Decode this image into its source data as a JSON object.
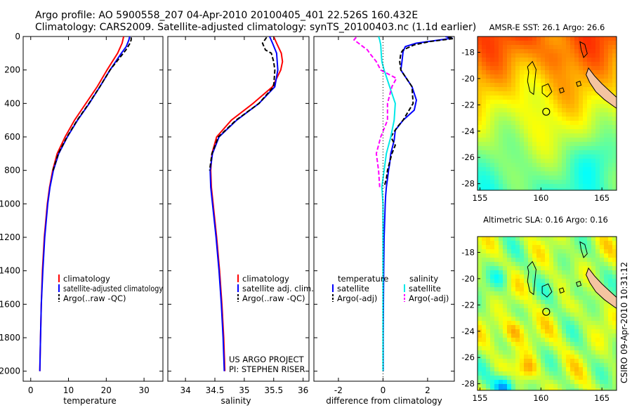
{
  "header": {
    "title_line1": "Argo profile: AO 5900558_207 04-Apr-2010 20100405_401 22.526S 160.432E",
    "title_line2": "Climatology: CARS2009. Satellite-adjusted climatology: synTS_20100403.nc (1.1d earlier)"
  },
  "colors": {
    "climatology": "#ff0000",
    "satellite": "#0000ff",
    "argo": "#000000",
    "satellite_salinity": "#00e8e8",
    "argo_salinity": "#ff00ff",
    "land": "#f4c4a0"
  },
  "chart_data": [
    {
      "id": "temperature",
      "type": "line",
      "xlabel": "temperature",
      "xlim": [
        -2,
        35
      ],
      "ylim": [
        0,
        2060
      ],
      "xticks": [
        0,
        10,
        20,
        30
      ],
      "yticks": [
        0,
        200,
        400,
        600,
        800,
        1000,
        1200,
        1400,
        1600,
        1800,
        2000
      ],
      "legend": [
        "climatology",
        "satellite-adjusted climatology",
        "Argo(..raw -QC)"
      ],
      "legend_position": "lower-right",
      "series": [
        {
          "name": "climatology",
          "color": "#ff0000",
          "dash": "",
          "depth": [
            0,
            40,
            100,
            200,
            300,
            400,
            500,
            600,
            700,
            800,
            900,
            1000,
            1200,
            1400,
            1600,
            1800,
            2000
          ],
          "values": [
            24.6,
            24.2,
            23.0,
            20.2,
            17.6,
            14.6,
            11.6,
            9.1,
            7.0,
            5.8,
            5.0,
            4.4,
            3.6,
            3.1,
            2.8,
            2.6,
            2.4
          ]
        },
        {
          "name": "satellite-adjusted climatology",
          "color": "#0000ff",
          "dash": "",
          "depth": [
            0,
            20,
            60,
            100,
            200,
            300,
            400,
            500,
            600,
            700,
            800,
            900,
            1000,
            1200,
            1400,
            1600,
            1800,
            2000
          ],
          "values": [
            26.2,
            26.0,
            25.3,
            24.0,
            21.0,
            18.3,
            15.5,
            12.4,
            9.7,
            7.4,
            6.0,
            5.1,
            4.5,
            3.7,
            3.2,
            2.8,
            2.6,
            2.4
          ]
        },
        {
          "name": "Argo(..raw -QC)",
          "color": "#000000",
          "dash": "6,3",
          "depth": [
            5,
            20,
            40,
            80,
            120,
            200,
            300,
            400,
            500,
            600,
            700,
            800
          ],
          "values": [
            26.6,
            26.6,
            26.3,
            25.2,
            23.8,
            21.0,
            18.3,
            15.4,
            12.3,
            9.6,
            7.3,
            5.9
          ]
        }
      ]
    },
    {
      "id": "salinity",
      "type": "line",
      "xlabel": "salinity",
      "xlim": [
        33.7,
        36.1
      ],
      "ylim": [
        0,
        2060
      ],
      "xticks": [
        34,
        34.5,
        35,
        35.5,
        36
      ],
      "legend": [
        "climatology",
        "satellite adj. clim.",
        "Argo(..raw -QC)"
      ],
      "legend_position": "lower-right",
      "annotation": [
        "US ARGO PROJECT",
        "PI: STEPHEN RISER"
      ],
      "series": [
        {
          "name": "climatology",
          "color": "#ff0000",
          "dash": "",
          "depth": [
            0,
            40,
            100,
            150,
            200,
            300,
            400,
            500,
            600,
            700,
            800,
            900,
            1000,
            1200,
            1400,
            1600,
            1800,
            2000
          ],
          "values": [
            35.5,
            35.55,
            35.63,
            35.65,
            35.62,
            35.48,
            35.15,
            34.78,
            34.53,
            34.45,
            34.43,
            34.44,
            34.47,
            34.53,
            34.58,
            34.62,
            34.65,
            34.67
          ]
        },
        {
          "name": "satellite adj. clim.",
          "color": "#0000ff",
          "dash": "",
          "depth": [
            0,
            40,
            100,
            200,
            300,
            400,
            500,
            600,
            700,
            800,
            900,
            1000,
            1200,
            1400,
            1600,
            1800,
            2000
          ],
          "values": [
            35.43,
            35.48,
            35.55,
            35.57,
            35.52,
            35.25,
            34.87,
            34.57,
            34.46,
            34.42,
            34.43,
            34.46,
            34.52,
            34.57,
            34.61,
            34.64,
            34.66
          ]
        },
        {
          "name": "Argo(..raw -QC)",
          "color": "#000000",
          "dash": "6,3",
          "depth": [
            5,
            40,
            80,
            100,
            150,
            200,
            300,
            400,
            500,
            600,
            700,
            800
          ],
          "values": [
            35.38,
            35.31,
            35.36,
            35.46,
            35.5,
            35.52,
            35.5,
            35.25,
            34.86,
            34.56,
            34.45,
            34.41
          ]
        }
      ]
    },
    {
      "id": "difference",
      "type": "line",
      "xlabel": "difference from climatology",
      "xlim": [
        -3.1,
        3.2
      ],
      "ylim": [
        0,
        2060
      ],
      "xticks": [
        -2,
        0,
        2
      ],
      "legend_headers": [
        "temperature",
        "salinity"
      ],
      "legend": [
        "satellite",
        "Argo(-adj)",
        "satellite",
        "Argo(-adj)"
      ],
      "legend_position": "lower-right",
      "series": [
        {
          "name": "satellite",
          "group": "temperature",
          "color": "#0000ff",
          "dash": "",
          "depth": [
            0,
            10,
            40,
            60,
            90,
            150,
            200,
            300,
            380,
            440,
            500,
            560,
            620,
            700,
            760,
            800,
            850,
            900,
            950,
            1000,
            1200,
            1400,
            1600,
            1800,
            2000
          ],
          "values": [
            2.8,
            3.1,
            1.5,
            1.0,
            0.9,
            0.85,
            0.8,
            1.3,
            1.5,
            1.4,
            0.9,
            0.55,
            0.5,
            0.35,
            0.3,
            0.25,
            0.2,
            0.15,
            0.12,
            0.1,
            0.05,
            0.03,
            0.02,
            0.01,
            0.01
          ]
        },
        {
          "name": "Argo(-adj)",
          "group": "temperature",
          "color": "#000000",
          "dash": "6,3",
          "depth": [
            5,
            10,
            30,
            50,
            80,
            100,
            150,
            200,
            300,
            400,
            500,
            540,
            600,
            650,
            700,
            750,
            800,
            850,
            900
          ],
          "values": [
            2.9,
            3.3,
            2.1,
            1.4,
            0.9,
            0.8,
            0.75,
            0.8,
            1.3,
            1.35,
            0.9,
            0.65,
            0.35,
            0.55,
            0.4,
            0.3,
            0.2,
            0.15,
            0.05
          ]
        },
        {
          "name": "satellite",
          "group": "salinity",
          "color": "#00e8e8",
          "dash": "",
          "depth": [
            0,
            20,
            50,
            100,
            150,
            200,
            300,
            400,
            500,
            600,
            700,
            800,
            900,
            1000,
            1200,
            1400,
            1600,
            1800,
            2000
          ],
          "values": [
            -0.2,
            -0.15,
            -0.1,
            -0.08,
            -0.05,
            0.05,
            0.3,
            0.55,
            0.5,
            0.35,
            0.15,
            0.05,
            -0.05,
            0.0,
            0.0,
            0.0,
            0.0,
            0.0,
            0.0
          ]
        },
        {
          "name": "Argo(-adj)",
          "group": "salinity",
          "color": "#ff00ff",
          "dash": "6,3",
          "depth": [
            5,
            20,
            40,
            60,
            80,
            100,
            150,
            200,
            250,
            300,
            400,
            500,
            600,
            700,
            800,
            900
          ],
          "values": [
            -1.2,
            -1.3,
            -1.1,
            -0.9,
            -0.7,
            -0.6,
            -0.3,
            -0.1,
            0.6,
            0.4,
            0.2,
            0.2,
            -0.1,
            -0.3,
            -0.2,
            -0.15
          ]
        }
      ]
    },
    {
      "id": "sst_map",
      "type": "heatmap",
      "title": "AMSR-E SST: 26.1 Argo: 26.6",
      "xlim": [
        154.8,
        166.2
      ],
      "ylim": [
        -28.5,
        -16.8
      ],
      "xticks": [
        155,
        160,
        165
      ],
      "yticks": [
        -18,
        -20,
        -22,
        -24,
        -26,
        -28
      ],
      "float_position": [
        160.432,
        -22.526
      ],
      "colormap": "jet"
    },
    {
      "id": "sla_map",
      "type": "heatmap",
      "title": "Altimetric SLA: 0.16 Argo: 0.16",
      "xlim": [
        154.8,
        166.2
      ],
      "ylim": [
        -28.5,
        -16.8
      ],
      "xticks": [
        155,
        160,
        165
      ],
      "yticks": [
        -18,
        -20,
        -22,
        -24,
        -26,
        -28
      ],
      "float_position": [
        160.432,
        -22.526
      ],
      "colormap": "jet"
    }
  ],
  "footer": {
    "stamp": "CSIRO 09-Apr-2010 10:31:12"
  }
}
